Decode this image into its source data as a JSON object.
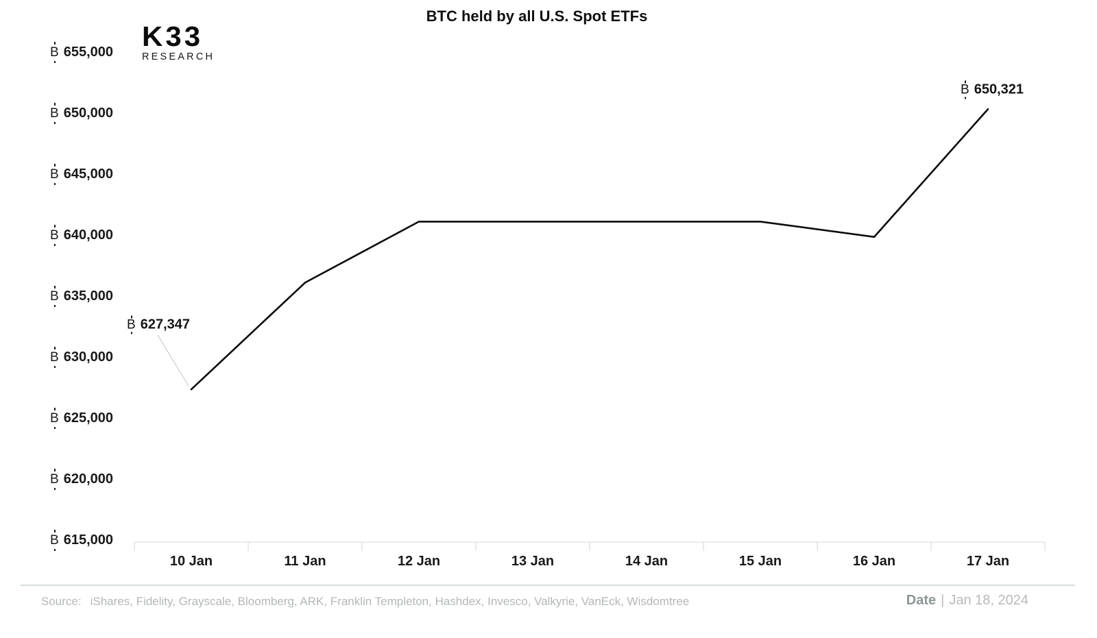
{
  "logo": {
    "title": "K33",
    "subtitle": "RESEARCH"
  },
  "chart_data": {
    "type": "line",
    "title": "BTC held by all U.S. Spot ETFs",
    "unit_prefix": "₿",
    "categories": [
      "10 Jan",
      "11 Jan",
      "12 Jan",
      "13 Jan",
      "14 Jan",
      "15 Jan",
      "16 Jan",
      "17 Jan"
    ],
    "values": [
      627347,
      636100,
      641100,
      641100,
      641100,
      641100,
      639850,
      650321
    ],
    "xlabel": "Date",
    "ylabel": "BTC held",
    "ylim": [
      615000,
      657500
    ],
    "yticks": [
      615000,
      620000,
      625000,
      630000,
      635000,
      640000,
      645000,
      650000,
      655000
    ],
    "ytick_labels": [
      "615,000",
      "620,000",
      "625,000",
      "630,000",
      "635,000",
      "640,000",
      "645,000",
      "650,000",
      "655,000"
    ],
    "grid": false,
    "legend": "none",
    "line_color": "#0b0b0b",
    "annotations": [
      {
        "category": "10 Jan",
        "value": 627347,
        "label": "627,347"
      },
      {
        "category": "17 Jan",
        "value": 650321,
        "label": "650,321"
      }
    ]
  },
  "footer": {
    "source_label": "Source:",
    "source_text": "iShares, Fidelity, Grayscale, Bloomberg, ARK, Franklin Templeton, Hashdex, Invesco, Valkyrie, VanEck, Wisdomtree",
    "date_label": "Date",
    "separator": "|",
    "date_value": "Jan 18, 2024"
  },
  "colors": {
    "line": "#0b0b0b",
    "axis": "#dfdfdf",
    "leader_line": "#c4c4c4",
    "divider": "#d7dcdf",
    "muted_text": "#b3b7b8",
    "dark_text": "#191919"
  }
}
